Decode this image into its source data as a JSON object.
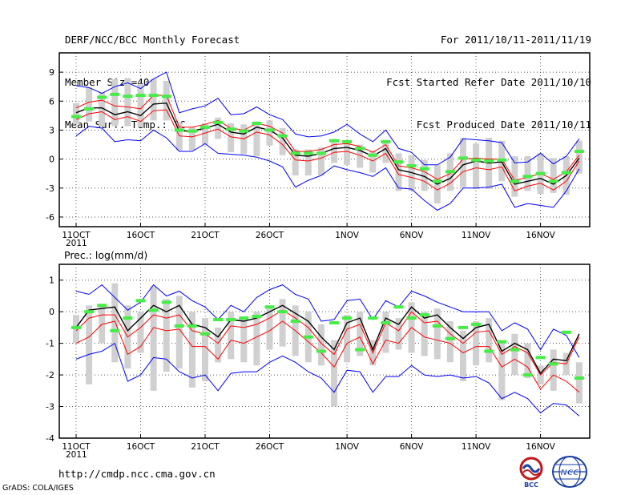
{
  "header": {
    "title": "DERF/NCC/BCC Monthly Forecast",
    "member_size": "Member Size=40",
    "variable": "Mean Surf. Temp.: °C",
    "period": "For 2011/10/11-2011/11/19",
    "started": "Fcst Started Refer Date 2011/10/10",
    "produced": "Fcst Produced Date 2011/10/11"
  },
  "footer": {
    "url": "http://cmdp.ncc.cma.gov.cn",
    "grads": "GrADS: COLA/IGES",
    "logo_bcc": "BCC",
    "logo_ncc": "NCC"
  },
  "colors": {
    "member_bar": "#d0d0d0",
    "observed": "#44ee44",
    "mean": "#000000",
    "red_band": "#ff0000",
    "blue_band": "#0000ff",
    "grid": "#555555"
  },
  "chart_data": [
    {
      "type": "line",
      "title": "Mean Surf. Temp.: °C",
      "x_tick_labels": [
        "11OCT",
        "16OCT",
        "21OCT",
        "26OCT",
        "1NOV",
        "6NOV",
        "11NOV",
        "16NOV"
      ],
      "x_tick_days": [
        0,
        5,
        10,
        15,
        21,
        26,
        31,
        36
      ],
      "year_label": "2011",
      "ylim": [
        -7,
        11
      ],
      "y_ticks": [
        -6,
        -3,
        0,
        3,
        6,
        9
      ],
      "series": [
        {
          "name": "ensemble mean",
          "color": "#000000",
          "values": [
            4.8,
            5.3,
            5.3,
            4.6,
            4.9,
            4.5,
            5.7,
            5.8,
            2.9,
            2.9,
            3.2,
            3.6,
            2.8,
            2.6,
            3.3,
            3.0,
            2.2,
            0.4,
            0.3,
            0.6,
            1.1,
            1.2,
            0.9,
            0.3,
            1.1,
            -1.1,
            -1.4,
            -1.8,
            -2.6,
            -2.0,
            -0.6,
            -0.2,
            -0.4,
            -0.3,
            -2.6,
            -2.3,
            -2.0,
            -2.6,
            -1.7,
            0.1
          ]
        },
        {
          "name": "upper red",
          "color": "#ff0000",
          "values": [
            5.3,
            5.9,
            6.1,
            5.5,
            5.4,
            5.2,
            6.6,
            6.6,
            3.3,
            3.3,
            3.6,
            4.0,
            3.2,
            3.0,
            3.7,
            3.4,
            2.7,
            0.8,
            0.8,
            1.0,
            1.5,
            1.6,
            1.3,
            0.7,
            1.5,
            -0.7,
            -0.9,
            -1.3,
            -2.1,
            -1.5,
            0.0,
            0.1,
            0.0,
            0.0,
            -2.2,
            -1.9,
            -1.5,
            -2.1,
            -1.3,
            0.4
          ]
        },
        {
          "name": "lower red",
          "color": "#ff0000",
          "values": [
            4.1,
            4.7,
            4.9,
            4.1,
            4.4,
            3.9,
            5.0,
            5.1,
            2.4,
            2.3,
            2.7,
            3.1,
            2.3,
            2.1,
            2.8,
            2.5,
            1.5,
            -0.1,
            -0.2,
            0.1,
            0.7,
            0.8,
            0.4,
            -0.2,
            0.6,
            -1.6,
            -1.9,
            -2.3,
            -3.2,
            -2.5,
            -1.3,
            -0.9,
            -1.1,
            -0.8,
            -3.3,
            -2.8,
            -2.5,
            -3.2,
            -2.3,
            -0.2
          ]
        },
        {
          "name": "upper blue",
          "color": "#0000ff",
          "values": [
            7.6,
            7.4,
            6.8,
            7.5,
            7.9,
            7.3,
            8.3,
            9.0,
            4.8,
            5.2,
            5.5,
            6.3,
            4.6,
            4.7,
            5.4,
            4.6,
            4.1,
            2.6,
            2.3,
            2.4,
            2.8,
            3.6,
            2.6,
            1.8,
            3.0,
            1.1,
            0.7,
            -0.6,
            -0.6,
            0.2,
            2.1,
            2.0,
            1.9,
            1.7,
            -0.4,
            -0.3,
            0.6,
            -0.5,
            0.3,
            2.1
          ]
        },
        {
          "name": "lower blue",
          "color": "#0000ff",
          "values": [
            2.4,
            3.4,
            3.2,
            1.8,
            2.0,
            1.9,
            3.0,
            2.2,
            0.8,
            0.8,
            1.6,
            0.6,
            0.5,
            0.4,
            0.2,
            -0.2,
            -0.8,
            -2.9,
            -2.2,
            -1.7,
            -0.7,
            -1.1,
            -1.4,
            -1.8,
            -0.9,
            -3.0,
            -3.1,
            -4.3,
            -5.3,
            -4.6,
            -3.0,
            -3.0,
            -2.9,
            -2.6,
            -5.0,
            -4.6,
            -4.8,
            -5.0,
            -3.3,
            -1.0
          ]
        },
        {
          "name": "member max",
          "color": "#d0d0d0",
          "values": [
            5.8,
            7.4,
            6.9,
            8.3,
            8.4,
            7.8,
            8.3,
            8.1,
            3.8,
            3.3,
            3.7,
            4.3,
            3.7,
            3.6,
            3.9,
            4.0,
            3.2,
            1.0,
            1.0,
            1.2,
            1.7,
            1.8,
            1.5,
            0.9,
            1.7,
            0.6,
            0.4,
            -0.1,
            -0.6,
            0.6,
            2.2,
            1.6,
            2.2,
            1.9,
            0.3,
            0.3,
            0.6,
            0.1,
            0.3,
            1.9
          ]
        },
        {
          "name": "member min",
          "color": "#d0d0d0",
          "values": [
            3.6,
            3.9,
            3.4,
            3.4,
            3.4,
            3.3,
            4.0,
            4.0,
            0.9,
            0.9,
            1.5,
            2.1,
            0.7,
            0.5,
            0.3,
            1.4,
            0.4,
            -1.7,
            -1.7,
            -1.7,
            -0.4,
            -0.6,
            -0.9,
            -1.4,
            -0.4,
            -3.3,
            -3.3,
            -3.3,
            -4.6,
            -3.3,
            -2.9,
            -3.1,
            -3.1,
            -2.3,
            -3.9,
            -3.3,
            -3.6,
            -3.5,
            -3.7,
            -1.5
          ]
        },
        {
          "name": "observed",
          "color": "#44ee44",
          "values": [
            4.4,
            5.2,
            6.4,
            6.7,
            6.5,
            6.6,
            6.6,
            6.5,
            3.0,
            2.9,
            3.3,
            3.8,
            3.1,
            2.9,
            3.7,
            3.0,
            2.4,
            0.6,
            0.6,
            0.6,
            1.9,
            1.8,
            1.1,
            0.4,
            1.8,
            -0.3,
            -0.7,
            -1.0,
            -2.3,
            -1.3,
            0.1,
            -0.1,
            -0.2,
            -0.1,
            -2.3,
            -1.8,
            -1.5,
            -2.3,
            -1.4,
            0.8
          ]
        }
      ]
    },
    {
      "type": "line",
      "title": "Prec.: log(mm/d)",
      "x_tick_labels": [
        "11OCT",
        "16OCT",
        "21OCT",
        "26OCT",
        "1NOV",
        "6NOV",
        "11NOV",
        "16NOV"
      ],
      "x_tick_days": [
        0,
        5,
        10,
        15,
        21,
        26,
        31,
        36
      ],
      "year_label": "2011",
      "ylim": [
        -4,
        1.5
      ],
      "y_ticks": [
        -4,
        -3,
        -2,
        -1,
        0,
        1
      ],
      "series": [
        {
          "name": "ensemble mean",
          "color": "#000000",
          "values": [
            -0.5,
            0.05,
            0.1,
            0.15,
            -0.6,
            -0.2,
            0.2,
            0.0,
            0.2,
            -0.4,
            -0.5,
            -0.8,
            -0.25,
            -0.3,
            -0.2,
            0.0,
            0.2,
            -0.05,
            -0.3,
            -0.8,
            -1.2,
            -0.35,
            -0.2,
            -1.2,
            -0.2,
            -0.4,
            0.15,
            -0.2,
            -0.1,
            -0.5,
            -0.85,
            -0.5,
            -0.4,
            -1.25,
            -1.0,
            -1.2,
            -1.95,
            -1.5,
            -1.55,
            -0.7
          ]
        },
        {
          "name": "upper red",
          "color": "#ff0000",
          "values": [
            -0.6,
            -0.2,
            -0.1,
            -0.1,
            -0.8,
            -0.5,
            -0.1,
            -0.2,
            -0.1,
            -0.6,
            -0.7,
            -1.0,
            -0.45,
            -0.5,
            -0.4,
            -0.2,
            0.05,
            -0.2,
            -0.5,
            -1.0,
            -1.35,
            -0.55,
            -0.4,
            -1.3,
            -0.35,
            -0.6,
            0.0,
            -0.35,
            -0.3,
            -0.7,
            -1.0,
            -0.65,
            -0.6,
            -1.35,
            -1.1,
            -1.3,
            -2.0,
            -1.6,
            -1.65,
            -0.8
          ]
        },
        {
          "name": "lower red",
          "color": "#ff0000",
          "values": [
            -1.0,
            -0.8,
            -0.4,
            -0.3,
            -1.35,
            -1.1,
            -0.5,
            -0.6,
            -0.55,
            -1.1,
            -1.1,
            -1.5,
            -0.9,
            -1.0,
            -0.8,
            -0.6,
            -0.3,
            -0.6,
            -0.95,
            -1.3,
            -1.75,
            -1.0,
            -0.8,
            -1.65,
            -0.9,
            -1.0,
            -0.5,
            -0.8,
            -0.9,
            -1.0,
            -1.3,
            -1.1,
            -1.1,
            -1.75,
            -1.5,
            -1.75,
            -2.45,
            -2.0,
            -2.2,
            -2.55
          ]
        },
        {
          "name": "upper blue",
          "color": "#0000ff",
          "values": [
            0.65,
            0.55,
            0.85,
            0.45,
            0.05,
            0.3,
            0.85,
            0.5,
            0.65,
            0.35,
            0.15,
            -0.25,
            0.2,
            0.0,
            0.45,
            0.7,
            0.85,
            0.55,
            0.4,
            -0.3,
            -0.25,
            0.35,
            0.4,
            -0.25,
            0.35,
            0.15,
            0.65,
            0.5,
            0.3,
            0.15,
            0.0,
            0.0,
            0.0,
            -0.6,
            -0.35,
            -0.55,
            -1.2,
            -0.55,
            -0.75,
            -1.45
          ]
        },
        {
          "name": "lower blue",
          "color": "#0000ff",
          "values": [
            -1.5,
            -1.35,
            -1.25,
            -1.0,
            -2.2,
            -2.0,
            -1.45,
            -1.5,
            -1.9,
            -2.1,
            -2.0,
            -2.5,
            -1.95,
            -1.9,
            -1.9,
            -1.6,
            -1.4,
            -1.6,
            -1.9,
            -2.1,
            -2.55,
            -1.85,
            -1.9,
            -2.55,
            -2.05,
            -2.05,
            -1.7,
            -2.0,
            -2.05,
            -2.0,
            -2.1,
            -2.05,
            -2.25,
            -2.75,
            -2.55,
            -2.75,
            -3.2,
            -2.9,
            -2.95,
            -3.3
          ]
        },
        {
          "name": "member max",
          "color": "#d0d0d0",
          "values": [
            -0.1,
            0.2,
            0.2,
            0.9,
            0.2,
            0.0,
            0.8,
            0.4,
            0.5,
            0.0,
            -0.2,
            -0.5,
            0.0,
            -0.2,
            0.0,
            0.2,
            0.4,
            0.2,
            0.0,
            -0.4,
            -0.9,
            -0.1,
            0.0,
            -0.9,
            0.0,
            -0.2,
            0.3,
            0.0,
            0.1,
            -0.3,
            -0.6,
            -0.3,
            -0.2,
            -1.0,
            -0.7,
            -1.0,
            -1.7,
            -1.2,
            -1.3,
            -1.6
          ]
        },
        {
          "name": "member min",
          "color": "#d0d0d0",
          "values": [
            -1.0,
            -2.3,
            -1.0,
            -1.6,
            -1.8,
            -1.3,
            -2.5,
            -1.9,
            -1.8,
            -2.4,
            -2.2,
            -1.6,
            -1.5,
            -1.6,
            -1.7,
            -1.2,
            -1.1,
            -1.4,
            -1.6,
            -1.7,
            -3.0,
            -1.6,
            -1.4,
            -1.7,
            -1.3,
            -1.2,
            -1.3,
            -1.4,
            -1.5,
            -1.6,
            -2.2,
            -1.7,
            -1.6,
            -2.8,
            -2.0,
            -2.1,
            -2.3,
            -2.5,
            -2.0,
            -2.9
          ]
        },
        {
          "name": "observed",
          "color": "#44ee44",
          "values": [
            -0.5,
            0.0,
            0.2,
            -0.6,
            -0.2,
            0.35,
            0.05,
            0.3,
            -0.45,
            -0.45,
            -0.7,
            -0.25,
            -0.25,
            -0.2,
            -0.15,
            0.15,
            0.0,
            -0.3,
            -0.8,
            -1.25,
            -0.35,
            -0.2,
            -1.2,
            -0.2,
            -0.35,
            0.15,
            -0.2,
            -0.1,
            -0.45,
            -0.85,
            -0.5,
            -0.4,
            -1.25,
            -0.95,
            -1.2,
            -2.0,
            -1.45,
            -1.65,
            -0.65,
            -2.1
          ]
        }
      ]
    }
  ]
}
